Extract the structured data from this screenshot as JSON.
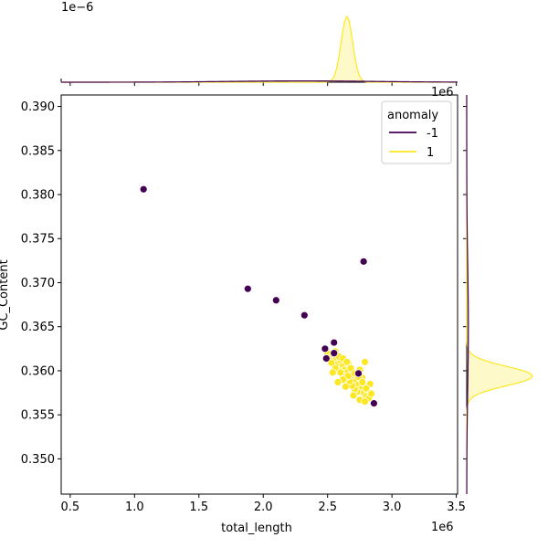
{
  "chart_data": {
    "type": "scatter",
    "xlabel": "total_length",
    "ylabel": "GC_Content",
    "x_offset_label": "1e6",
    "y_offset_label": "1e6",
    "top_offset_label": "1e−6",
    "xlim": [
      0.43,
      3.51
    ],
    "ylim": [
      0.346,
      0.3913
    ],
    "x_ticks": [
      0.5,
      1.0,
      1.5,
      2.0,
      2.5,
      3.0,
      3.5
    ],
    "x_tick_labels": [
      "0.5",
      "1.0",
      "1.5",
      "2.0",
      "2.5",
      "3.0",
      "3.5"
    ],
    "y_ticks": [
      0.35,
      0.355,
      0.36,
      0.365,
      0.37,
      0.375,
      0.38,
      0.385,
      0.39
    ],
    "y_tick_labels": [
      "0.350",
      "0.355",
      "0.360",
      "0.365",
      "0.370",
      "0.375",
      "0.380",
      "0.385",
      "0.390"
    ],
    "legend": {
      "title": "anomaly",
      "placement": "top-right",
      "entries": [
        {
          "label": "-1",
          "color": "#440154"
        },
        {
          "label": "1",
          "color": "#fde725"
        }
      ]
    },
    "series": [
      {
        "name": "-1",
        "color": "#440154",
        "points": [
          [
            1.07,
            0.3806
          ],
          [
            1.88,
            0.3693
          ],
          [
            2.1,
            0.368
          ],
          [
            2.32,
            0.3663
          ],
          [
            2.78,
            0.3724
          ],
          [
            2.48,
            0.3625
          ],
          [
            2.55,
            0.3632
          ],
          [
            2.55,
            0.362
          ],
          [
            2.49,
            0.3614
          ],
          [
            2.74,
            0.3597
          ],
          [
            2.86,
            0.3563
          ]
        ]
      },
      {
        "name": "1",
        "color": "#fde725",
        "points": [
          [
            2.5,
            0.362
          ],
          [
            2.52,
            0.3615
          ],
          [
            2.55,
            0.3618
          ],
          [
            2.57,
            0.3613
          ],
          [
            2.58,
            0.3608
          ],
          [
            2.6,
            0.3612
          ],
          [
            2.62,
            0.3605
          ],
          [
            2.63,
            0.3601
          ],
          [
            2.65,
            0.3598
          ],
          [
            2.66,
            0.3608
          ],
          [
            2.68,
            0.3595
          ],
          [
            2.7,
            0.3591
          ],
          [
            2.72,
            0.3588
          ],
          [
            2.74,
            0.3584
          ],
          [
            2.76,
            0.3579
          ],
          [
            2.78,
            0.3575
          ],
          [
            2.8,
            0.3571
          ],
          [
            2.82,
            0.3569
          ],
          [
            2.84,
            0.3574
          ],
          [
            2.83,
            0.3585
          ],
          [
            2.79,
            0.361
          ],
          [
            2.77,
            0.3592
          ],
          [
            2.75,
            0.3601
          ],
          [
            2.73,
            0.3576
          ],
          [
            2.71,
            0.3579
          ],
          [
            2.69,
            0.3583
          ],
          [
            2.67,
            0.3588
          ],
          [
            2.64,
            0.3592
          ],
          [
            2.61,
            0.3596
          ],
          [
            2.59,
            0.36
          ],
          [
            2.56,
            0.3603
          ],
          [
            2.54,
            0.3598
          ],
          [
            2.53,
            0.3609
          ],
          [
            2.56,
            0.3622
          ],
          [
            2.59,
            0.3616
          ],
          [
            2.62,
            0.3614
          ],
          [
            2.65,
            0.361
          ],
          [
            2.68,
            0.3603
          ],
          [
            2.71,
            0.3597
          ],
          [
            2.74,
            0.3593
          ],
          [
            2.77,
            0.3587
          ],
          [
            2.8,
            0.358
          ],
          [
            2.66,
            0.3594
          ],
          [
            2.62,
            0.359
          ],
          [
            2.58,
            0.3587
          ],
          [
            2.7,
            0.3572
          ],
          [
            2.75,
            0.3567
          ],
          [
            2.79,
            0.3565
          ],
          [
            2.64,
            0.3582
          ],
          [
            2.6,
            0.3598
          ]
        ]
      }
    ],
    "marginal_top": {
      "xlim": [
        0.43,
        3.51
      ],
      "curves": [
        {
          "name": "1",
          "color": "#fde725",
          "mean": 2.65,
          "sd": 0.045,
          "peak": 1.0
        },
        {
          "name": "-1",
          "color": "#440154",
          "mean": 2.3,
          "sd": 0.55,
          "peak": 0.02
        }
      ]
    },
    "marginal_right": {
      "ylim": [
        0.346,
        0.3913
      ],
      "curves": [
        {
          "name": "1",
          "color": "#fde725",
          "mean": 0.3594,
          "sd": 0.0011,
          "peak": 1.0
        },
        {
          "name": "-1",
          "color": "#440154",
          "mean": 0.365,
          "sd": 0.007,
          "peak": 0.025
        }
      ]
    }
  }
}
